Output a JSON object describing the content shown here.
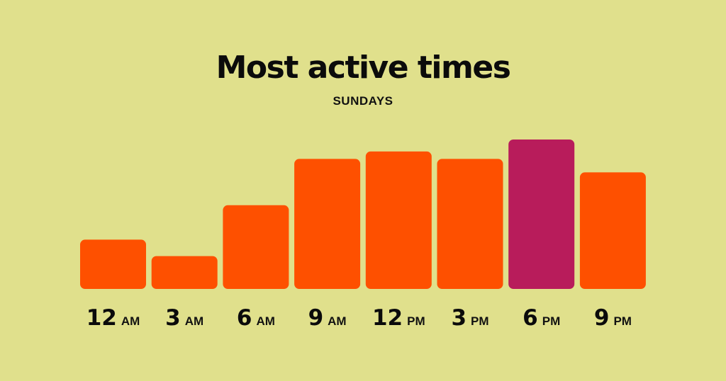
{
  "chart_data": {
    "type": "bar",
    "title": "Most active times",
    "subtitle": "SUNDAYS",
    "categories": [
      {
        "hour": "12",
        "period": "AM"
      },
      {
        "hour": "3",
        "period": "AM"
      },
      {
        "hour": "6",
        "period": "AM"
      },
      {
        "hour": "9",
        "period": "AM"
      },
      {
        "hour": "12",
        "period": "PM"
      },
      {
        "hour": "3",
        "period": "PM"
      },
      {
        "hour": "6",
        "period": "PM"
      },
      {
        "hour": "9",
        "period": "PM"
      }
    ],
    "values": [
      33,
      22,
      56,
      87,
      92,
      87,
      100,
      78
    ],
    "highlight_index": 6,
    "ylim": [
      0,
      100
    ],
    "grid": false,
    "legend": "none",
    "colors": {
      "bar": "#fe5000",
      "highlight": "#b81c5b",
      "background": "#e0e08c",
      "text": "#0b0b0b"
    }
  }
}
